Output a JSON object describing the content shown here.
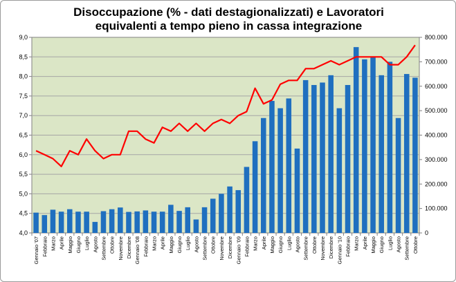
{
  "chart_data": {
    "type": "bar",
    "title_line1": "Disoccupazione (% - dati destagionalizzati) e Lavoratori",
    "title_line2": "equivalenti a tempo pieno in cassa integrazione",
    "categories": [
      "Gennaio '07",
      "Febbraio",
      "Marzo",
      "Aprile",
      "Maggio",
      "Giugno",
      "Luglio",
      "Agosto",
      "Settembre",
      "Ottobre",
      "Novembre",
      "Dicembre",
      "Gennaio '08",
      "Febbraio",
      "Marzo",
      "Aprile",
      "Maggio",
      "Giugno",
      "Luglio",
      "Agosto",
      "Settembre",
      "Ottobre",
      "Novembre",
      "Dicembre",
      "Gennaio '09",
      "Febbraio",
      "Marzo",
      "Aprile",
      "Maggio",
      "Giugno",
      "Luglio",
      "Agosto",
      "Settembre",
      "Ottobre",
      "Novembre",
      "Dicembre",
      "Gennaio '10",
      "Febbraio",
      "Marzo",
      "Aprile",
      "Maggio",
      "Giugno",
      "Luglio",
      "Agosto",
      "Settembre",
      "Ottobre"
    ],
    "series": [
      {
        "kind": "bar",
        "axis": "right",
        "color": "#1f6fbf",
        "values": [
          83000,
          73000,
          95000,
          87000,
          97000,
          87000,
          87000,
          45000,
          89000,
          97000,
          104000,
          86000,
          88000,
          92000,
          87000,
          87000,
          115000,
          90000,
          105000,
          55000,
          105000,
          140000,
          160000,
          190000,
          175000,
          270000,
          375000,
          470000,
          540000,
          510000,
          550000,
          345000,
          625000,
          605000,
          615000,
          645000,
          510000,
          605000,
          760000,
          710000,
          720000,
          645000,
          700000,
          470000,
          650000,
          635000
        ]
      },
      {
        "kind": "line",
        "axis": "left",
        "color": "#ff0000",
        "values": [
          6.1,
          6.0,
          5.9,
          5.7,
          6.1,
          6.0,
          6.4,
          6.1,
          5.9,
          6.0,
          6.0,
          6.6,
          6.6,
          6.4,
          6.3,
          6.7,
          6.6,
          6.8,
          6.6,
          6.8,
          6.6,
          6.8,
          6.9,
          6.8,
          7.0,
          7.1,
          7.7,
          7.3,
          7.4,
          7.8,
          7.9,
          7.9,
          8.2,
          8.2,
          8.3,
          8.4,
          8.3,
          8.4,
          8.5,
          8.5,
          8.5,
          8.5,
          8.3,
          8.3,
          8.5,
          8.8
        ]
      }
    ],
    "left_axis": {
      "min": 4.0,
      "max": 9.0,
      "step": 0.5,
      "labels": [
        "4,0",
        "4,5",
        "5,0",
        "5,5",
        "6,0",
        "6,5",
        "7,0",
        "7,5",
        "8,0",
        "8,5",
        "9,0"
      ]
    },
    "right_axis": {
      "min": 0,
      "max": 800000,
      "step": 100000,
      "labels": [
        "0",
        "100.000",
        "200.000",
        "300.000",
        "400.000",
        "500.000",
        "600.000",
        "700.000",
        "800.000"
      ]
    },
    "grid": true,
    "legend": "none",
    "plot_background": "#dbe6c6",
    "grid_color": "#a5a5a5"
  }
}
